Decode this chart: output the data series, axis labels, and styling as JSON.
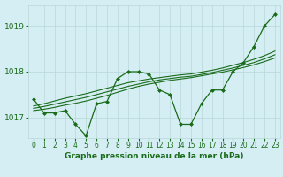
{
  "background_color": "#d4eef4",
  "grid_color": "#b8d8d8",
  "line_color": "#1a6b1a",
  "marker_color": "#1a6b1a",
  "title": "Graphe pression niveau de la mer (hPa)",
  "xlabel_ticks": [
    0,
    1,
    2,
    3,
    4,
    5,
    6,
    7,
    8,
    9,
    10,
    11,
    12,
    13,
    14,
    15,
    16,
    17,
    18,
    19,
    20,
    21,
    22,
    23
  ],
  "ylim": [
    1016.55,
    1019.45
  ],
  "yticks": [
    1017,
    1018,
    1019
  ],
  "jagged": [
    1017.4,
    1017.1,
    1017.1,
    1017.15,
    1016.85,
    1016.6,
    1017.3,
    1017.35,
    1017.85,
    1018.0,
    1018.0,
    1017.95,
    1017.6,
    1017.5,
    1016.85,
    1016.85,
    1017.3,
    1017.6,
    1017.6,
    1018.0,
    1018.2,
    1018.55,
    1019.0,
    1019.25
  ],
  "trend1": [
    1017.15,
    1017.18,
    1017.22,
    1017.27,
    1017.31,
    1017.36,
    1017.42,
    1017.48,
    1017.55,
    1017.62,
    1017.68,
    1017.73,
    1017.77,
    1017.81,
    1017.84,
    1017.87,
    1017.91,
    1017.95,
    1017.99,
    1018.04,
    1018.09,
    1018.15,
    1018.22,
    1018.3
  ],
  "trend2": [
    1017.2,
    1017.24,
    1017.29,
    1017.34,
    1017.39,
    1017.44,
    1017.5,
    1017.56,
    1017.62,
    1017.68,
    1017.73,
    1017.78,
    1017.82,
    1017.85,
    1017.88,
    1017.9,
    1017.94,
    1017.98,
    1018.03,
    1018.08,
    1018.14,
    1018.2,
    1018.28,
    1018.37
  ],
  "trend3": [
    1017.25,
    1017.3,
    1017.36,
    1017.42,
    1017.47,
    1017.52,
    1017.58,
    1017.64,
    1017.7,
    1017.76,
    1017.8,
    1017.84,
    1017.87,
    1017.9,
    1017.93,
    1017.95,
    1017.99,
    1018.03,
    1018.08,
    1018.14,
    1018.2,
    1018.27,
    1018.35,
    1018.45
  ]
}
